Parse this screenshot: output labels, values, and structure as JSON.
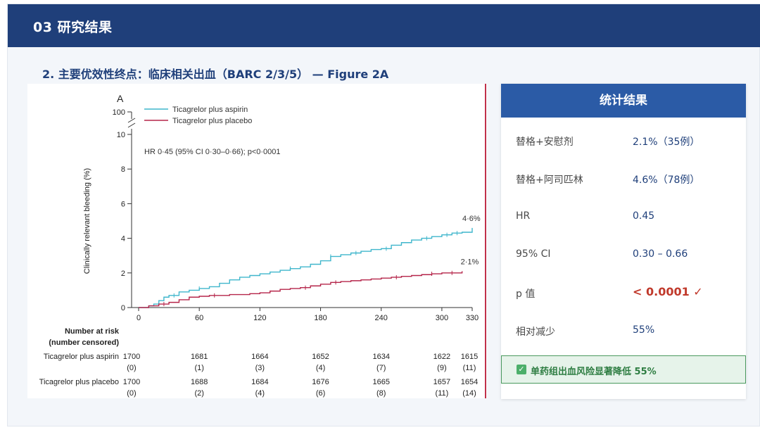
{
  "header": {
    "title": "03  研究结果"
  },
  "subtitle": "2. 主要优效性终点：临床相关出血（BARC 2/3/5） — Figure 2A",
  "chart_data": {
    "type": "line",
    "panel_label": "A",
    "ylabel": "Clinically relevant bleeding (%)",
    "y_ticks": [
      "0",
      "2",
      "4",
      "6",
      "8",
      "10",
      "100"
    ],
    "x_ticks": [
      "0",
      "60",
      "120",
      "180",
      "240",
      "300",
      "330"
    ],
    "xlim": [
      0,
      330
    ],
    "ylim": [
      0,
      10
    ],
    "y_axis_break": true,
    "annotation": "HR 0·45 (95% CI 0·30–0·66); p<0·0001",
    "legend": {
      "placement": "top-left",
      "items": [
        "Ticagrelor plus aspirin",
        "Ticagrelor plus placebo"
      ]
    },
    "series": [
      {
        "name": "Ticagrelor plus aspirin",
        "color": "#3fb6cc",
        "end_label": "4·6%",
        "x": [
          0,
          10,
          15,
          20,
          25,
          30,
          40,
          50,
          60,
          70,
          80,
          90,
          100,
          110,
          120,
          130,
          140,
          150,
          160,
          170,
          180,
          190,
          200,
          210,
          220,
          230,
          240,
          250,
          260,
          270,
          280,
          290,
          300,
          310,
          320,
          330
        ],
        "y": [
          0,
          0.1,
          0.2,
          0.4,
          0.6,
          0.7,
          0.9,
          1.0,
          1.1,
          1.2,
          1.4,
          1.6,
          1.75,
          1.85,
          1.95,
          2.05,
          2.15,
          2.25,
          2.35,
          2.5,
          2.7,
          2.95,
          3.05,
          3.15,
          3.25,
          3.35,
          3.4,
          3.6,
          3.75,
          3.9,
          4.0,
          4.1,
          4.2,
          4.3,
          4.35,
          4.6
        ],
        "censor_x": [
          35,
          60,
          150,
          190,
          215,
          245,
          285,
          305,
          315
        ]
      },
      {
        "name": "Ticagrelor plus placebo",
        "color": "#b5254a",
        "end_label": "2·1%",
        "x": [
          0,
          10,
          20,
          30,
          40,
          50,
          60,
          70,
          80,
          90,
          100,
          110,
          120,
          130,
          140,
          150,
          160,
          170,
          180,
          190,
          200,
          210,
          220,
          230,
          240,
          250,
          260,
          270,
          280,
          290,
          300,
          310,
          320
        ],
        "y": [
          0,
          0.1,
          0.2,
          0.3,
          0.45,
          0.6,
          0.65,
          0.7,
          0.7,
          0.75,
          0.75,
          0.8,
          0.85,
          0.95,
          1.05,
          1.1,
          1.15,
          1.25,
          1.35,
          1.45,
          1.5,
          1.55,
          1.6,
          1.65,
          1.7,
          1.75,
          1.8,
          1.85,
          1.9,
          1.95,
          2.0,
          2.0,
          2.1
        ],
        "censor_x": [
          25,
          75,
          165,
          195,
          255,
          290,
          310
        ]
      }
    ],
    "risk_table": {
      "title_line1": "Number at risk",
      "title_line2": "(number censored)",
      "timepoints": [
        0,
        60,
        120,
        180,
        240,
        300,
        330
      ],
      "rows": [
        {
          "label": "Ticagrelor plus aspirin",
          "at_risk": [
            "1700",
            "1681",
            "1664",
            "1652",
            "1634",
            "1622",
            "1615"
          ],
          "censored": [
            "(0)",
            "(1)",
            "(3)",
            "(4)",
            "(7)",
            "(9)",
            "(11)"
          ]
        },
        {
          "label": "Ticagrelor plus placebo",
          "at_risk": [
            "1700",
            "1688",
            "1684",
            "1676",
            "1665",
            "1657",
            "1654"
          ],
          "censored": [
            "(0)",
            "(2)",
            "(4)",
            "(6)",
            "(8)",
            "(11)",
            "(14)"
          ]
        }
      ]
    }
  },
  "stats": {
    "header": "统计结果",
    "rows": [
      {
        "label": "替格+安慰剂",
        "value": "2.1%（35例）"
      },
      {
        "label": "替格+阿司匹林",
        "value": "4.6%（78例）"
      },
      {
        "label": "HR",
        "value": "0.45"
      },
      {
        "label": "95% CI",
        "value": "0.30 – 0.66"
      },
      {
        "label": "p 值",
        "value": "< 0.0001 ✓"
      },
      {
        "label": "相对减少",
        "value": "55%"
      }
    ],
    "highlight": {
      "check_icon": "✓",
      "text": "单药组出血风险显著降低 55%"
    }
  }
}
